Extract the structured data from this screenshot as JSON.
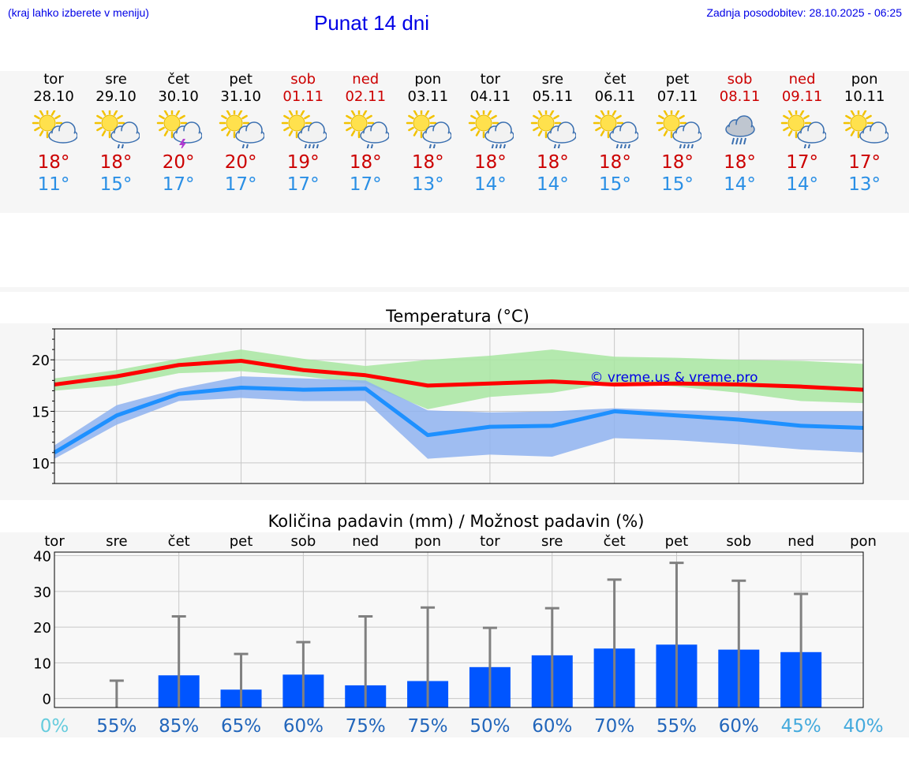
{
  "header": {
    "hint": "(kraj lahko izberete v meniju)",
    "title": "Punat 14 dni",
    "updated": "Zadnja posodobitev: 28.10.2025 - 06:25"
  },
  "days": [
    {
      "name": "tor",
      "date": "28.10",
      "weekend": false,
      "icon": "sun-cloud",
      "tmax": "18°",
      "tmin": "11°"
    },
    {
      "name": "sre",
      "date": "29.10",
      "weekend": false,
      "icon": "sun-cloud-rain",
      "tmax": "18°",
      "tmin": "15°"
    },
    {
      "name": "čet",
      "date": "30.10",
      "weekend": false,
      "icon": "sun-cloud-thunder",
      "tmax": "20°",
      "tmin": "17°"
    },
    {
      "name": "pet",
      "date": "31.10",
      "weekend": false,
      "icon": "sun-cloud-rain",
      "tmax": "20°",
      "tmin": "17°"
    },
    {
      "name": "sob",
      "date": "01.11",
      "weekend": true,
      "icon": "sun-cloud-heavy-rain",
      "tmax": "19°",
      "tmin": "17°"
    },
    {
      "name": "ned",
      "date": "02.11",
      "weekend": true,
      "icon": "sun-cloud-rain",
      "tmax": "18°",
      "tmin": "17°"
    },
    {
      "name": "pon",
      "date": "03.11",
      "weekend": false,
      "icon": "sun-cloud-rain",
      "tmax": "18°",
      "tmin": "13°"
    },
    {
      "name": "tor",
      "date": "04.11",
      "weekend": false,
      "icon": "sun-cloud-heavy-rain",
      "tmax": "18°",
      "tmin": "14°"
    },
    {
      "name": "sre",
      "date": "05.11",
      "weekend": false,
      "icon": "sun-cloud-rain",
      "tmax": "18°",
      "tmin": "14°"
    },
    {
      "name": "čet",
      "date": "06.11",
      "weekend": false,
      "icon": "sun-cloud-heavy-rain",
      "tmax": "18°",
      "tmin": "15°"
    },
    {
      "name": "pet",
      "date": "07.11",
      "weekend": false,
      "icon": "sun-cloud-heavy-rain",
      "tmax": "18°",
      "tmin": "15°"
    },
    {
      "name": "sob",
      "date": "08.11",
      "weekend": true,
      "icon": "cloud-heavy-rain",
      "tmax": "18°",
      "tmin": "14°"
    },
    {
      "name": "ned",
      "date": "09.11",
      "weekend": true,
      "icon": "sun-cloud-rain",
      "tmax": "17°",
      "tmin": "14°"
    },
    {
      "name": "pon",
      "date": "10.11",
      "weekend": false,
      "icon": "sun-cloud",
      "tmax": "17°",
      "tmin": "13°"
    }
  ],
  "colors": {
    "max_line": "#ff0000",
    "min_line": "#1e90ff",
    "max_band": "#a8e6a1",
    "min_band": "#8fb3f0",
    "bar": "#0055ff",
    "errbar": "#808080",
    "weekend": "#cc0000",
    "tmin": "#2a8fe5",
    "link": "#0000e6"
  },
  "chart_data": [
    {
      "type": "line",
      "title": "Temperatura (°C)",
      "watermark": "© vreme.us & vreme.pro",
      "ylim": [
        8,
        23
      ],
      "yticks": [
        10,
        15,
        20
      ],
      "grid": true,
      "series": [
        {
          "values": [
            17.6,
            18.4,
            19.5,
            19.9,
            19.0,
            18.5,
            17.5,
            17.7,
            17.9,
            17.6,
            17.7,
            17.6,
            17.4,
            17.1
          ],
          "band_low": [
            17.0,
            17.5,
            18.7,
            18.9,
            18.4,
            17.7,
            15.2,
            16.4,
            16.8,
            17.8,
            17.4,
            16.8,
            16.0,
            15.8
          ],
          "band_high": [
            18.2,
            19.0,
            20.1,
            21.0,
            20.1,
            19.4,
            20.0,
            20.4,
            21.0,
            20.3,
            20.2,
            20.0,
            19.9,
            19.6
          ]
        },
        {
          "values": [
            11.0,
            14.6,
            16.7,
            17.3,
            17.1,
            17.2,
            12.7,
            13.5,
            13.6,
            15.0,
            14.6,
            14.2,
            13.6,
            13.4
          ],
          "band_low": [
            10.4,
            13.7,
            16.0,
            16.3,
            16.0,
            16.0,
            10.4,
            10.8,
            10.6,
            12.4,
            12.2,
            11.8,
            11.3,
            11.0
          ],
          "band_high": [
            11.7,
            15.6,
            17.2,
            18.4,
            18.2,
            18.0,
            15.1,
            14.9,
            15.0,
            15.3,
            15.1,
            15.0,
            15.0,
            15.0
          ]
        }
      ]
    },
    {
      "type": "bar",
      "title": "Količina padavin (mm) / Možnost padavin (%)",
      "categories": [
        "tor",
        "sre",
        "čet",
        "pet",
        "sob",
        "ned",
        "pon",
        "tor",
        "sre",
        "čet",
        "pet",
        "sob",
        "ned",
        "pon"
      ],
      "values": [
        0,
        0,
        6.5,
        2.5,
        6.7,
        3.7,
        4.9,
        8.8,
        12.1,
        14.0,
        15.1,
        13.7,
        13.0,
        0
      ],
      "error_high": [
        0,
        5,
        23,
        12.5,
        15.8,
        23,
        25.5,
        19.8,
        25.3,
        33.3,
        38,
        33,
        29.3,
        0
      ],
      "probability": [
        "0%",
        "55%",
        "85%",
        "65%",
        "60%",
        "75%",
        "75%",
        "50%",
        "60%",
        "70%",
        "55%",
        "60%",
        "45%",
        "40%"
      ],
      "probability_colors": [
        "#66ccdd",
        "#2266bb",
        "#2266bb",
        "#2266bb",
        "#2266bb",
        "#2266bb",
        "#2266bb",
        "#2266bb",
        "#2266bb",
        "#2266bb",
        "#2266bb",
        "#2266bb",
        "#44aadd",
        "#44aadd"
      ],
      "ylim": [
        -2.5,
        41
      ],
      "yticks": [
        0,
        10,
        20,
        30,
        40
      ],
      "grid": true
    }
  ]
}
